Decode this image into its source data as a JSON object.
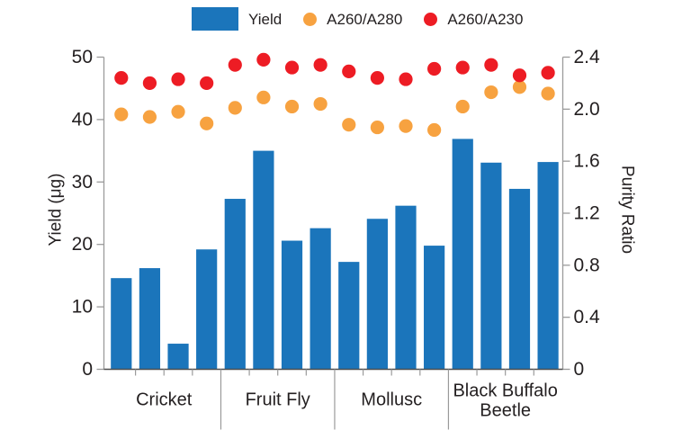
{
  "chart_data": {
    "type": "bar",
    "description": "Grouped bar chart of DNA yield with purity-ratio scatter overlay on a secondary axis",
    "categories": [
      "Cricket",
      "Fruit Fly",
      "Mollusc",
      "Black Buffalo Beetle"
    ],
    "categories_lines": [
      [
        "Cricket"
      ],
      [
        "Fruit Fly"
      ],
      [
        "Mollusc"
      ],
      [
        "Black Buffalo",
        "Beetle"
      ]
    ],
    "bars_per_category": 4,
    "series": [
      {
        "name": "Yield",
        "type": "bar",
        "axis": "left",
        "color": "#1b75bb",
        "values": [
          14.6,
          16.2,
          4.1,
          19.2,
          27.3,
          35.0,
          20.6,
          22.6,
          17.2,
          24.1,
          26.2,
          19.8,
          36.9,
          33.1,
          28.9,
          33.2
        ]
      },
      {
        "name": "A260/A280",
        "type": "scatter",
        "axis": "right",
        "color": "#f7a240",
        "values": [
          1.96,
          1.94,
          1.98,
          1.89,
          2.01,
          2.09,
          2.02,
          2.04,
          1.88,
          1.86,
          1.87,
          1.84,
          2.02,
          2.13,
          2.17,
          2.12
        ]
      },
      {
        "name": "A260/A230",
        "type": "scatter",
        "axis": "right",
        "color": "#ed1c24",
        "values": [
          2.24,
          2.2,
          2.23,
          2.2,
          2.34,
          2.38,
          2.32,
          2.34,
          2.29,
          2.24,
          2.23,
          2.31,
          2.32,
          2.34,
          2.26,
          2.28
        ]
      }
    ],
    "left_axis": {
      "title": "Yield (μg)",
      "ticks": [
        "0",
        "10",
        "20",
        "30",
        "40",
        "50"
      ],
      "range": [
        0,
        50
      ]
    },
    "right_axis": {
      "title": "Purity Ratio",
      "ticks": [
        "0",
        "0.4",
        "0.8",
        "1.2",
        "1.6",
        "2.0",
        "2.4"
      ],
      "range": [
        0,
        2.4
      ]
    },
    "legend": {
      "position": "top",
      "items": [
        {
          "label": "Yield",
          "marker": "square",
          "color": "#1b75bb"
        },
        {
          "label": "A260/A280",
          "marker": "circle",
          "color": "#f7a240"
        },
        {
          "label": "A260/A230",
          "marker": "circle",
          "color": "#ed1c24"
        }
      ]
    },
    "grid": "off",
    "background": "#ffffff"
  }
}
